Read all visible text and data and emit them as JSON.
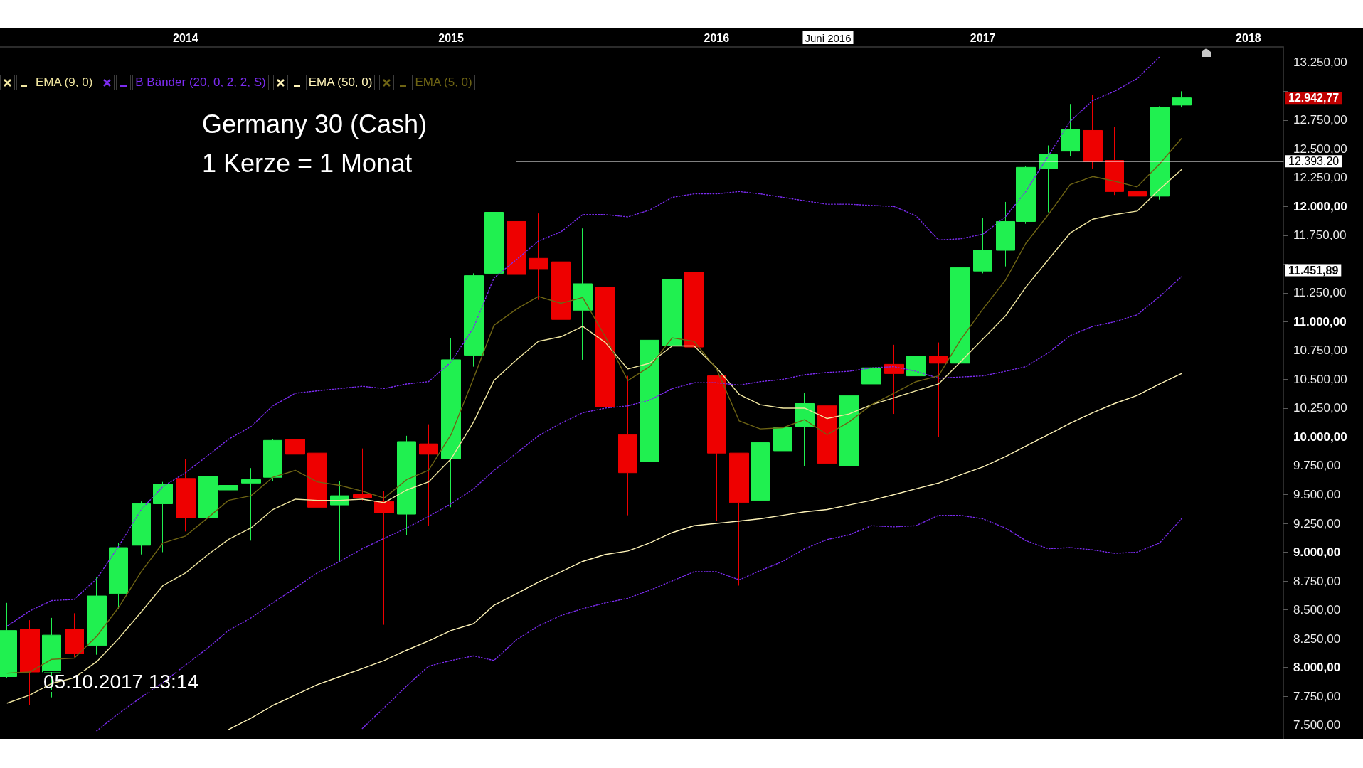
{
  "chart_data": {
    "type": "candlestick",
    "title": "Germany 30 (Cash)",
    "subtitle": "1 Kerze = 1 Monat",
    "x": [
      "2013-05",
      "2013-06",
      "2013-07",
      "2013-08",
      "2013-09",
      "2013-10",
      "2013-11",
      "2013-12",
      "2014-01",
      "2014-02",
      "2014-03",
      "2014-04",
      "2014-05",
      "2014-06",
      "2014-07",
      "2014-08",
      "2014-09",
      "2014-10",
      "2014-11",
      "2014-12",
      "2015-01",
      "2015-02",
      "2015-03",
      "2015-04",
      "2015-05",
      "2015-06",
      "2015-07",
      "2015-08",
      "2015-09",
      "2015-10",
      "2015-11",
      "2015-12",
      "2016-01",
      "2016-02",
      "2016-03",
      "2016-04",
      "2016-05",
      "2016-06",
      "2016-07",
      "2016-08",
      "2016-09",
      "2016-10",
      "2016-11",
      "2016-12",
      "2017-01",
      "2017-02",
      "2017-03",
      "2017-04",
      "2017-05",
      "2017-06",
      "2017-07",
      "2017-08",
      "2017-09",
      "2017-10"
    ],
    "xlim": [
      "2013-04-21",
      "2018-02-18"
    ],
    "xticks": [
      "2014",
      "2015",
      "2016",
      "2017",
      "2018"
    ],
    "ylim": [
      7380,
      13385
    ],
    "yticks": [
      {
        "value": 7500,
        "label": "7.500,00"
      },
      {
        "value": 7750,
        "label": "7.750,00"
      },
      {
        "value": 8000,
        "label": "8.000,00"
      },
      {
        "value": 8250,
        "label": "8.250,00"
      },
      {
        "value": 8500,
        "label": "8.500,00"
      },
      {
        "value": 8750,
        "label": "8.750,00"
      },
      {
        "value": 9000,
        "label": "9.000,00"
      },
      {
        "value": 9250,
        "label": "9.250,00"
      },
      {
        "value": 9500,
        "label": "9.500,00"
      },
      {
        "value": 9750,
        "label": "9.750,00"
      },
      {
        "value": 10000,
        "label": "10.000,00"
      },
      {
        "value": 10250,
        "label": "10.250,00"
      },
      {
        "value": 10500,
        "label": "10.500,00"
      },
      {
        "value": 10750,
        "label": "10.750,00"
      },
      {
        "value": 11000,
        "label": "11.000,00"
      },
      {
        "value": 11250,
        "label": "11.250,00"
      },
      {
        "value": 11500,
        "label": null
      },
      {
        "value": 11750,
        "label": "11.750,00"
      },
      {
        "value": 12000,
        "label": "12.000,00"
      },
      {
        "value": 12250,
        "label": "12.250,00"
      },
      {
        "value": 12500,
        "label": "12.500,00"
      },
      {
        "value": 12750,
        "label": "12.750,00"
      },
      {
        "value": 13000,
        "label": null
      },
      {
        "value": 13250,
        "label": "13.250,00"
      }
    ],
    "legend": "top left",
    "series": [
      {
        "ohlc": [
          [
            7920,
            8560,
            7910,
            8320
          ],
          [
            8330,
            8410,
            7670,
            7960
          ],
          [
            7960,
            8430,
            7740,
            8280
          ],
          [
            8330,
            8470,
            8090,
            8120
          ],
          [
            8190,
            8780,
            8110,
            8620
          ],
          [
            8640,
            9080,
            8510,
            9040
          ],
          [
            9060,
            9440,
            8980,
            9420
          ],
          [
            9420,
            9610,
            9000,
            9590
          ],
          [
            9640,
            9810,
            9180,
            9300
          ],
          [
            9300,
            9740,
            9080,
            9660
          ],
          [
            9540,
            9650,
            8930,
            9580
          ],
          [
            9600,
            9730,
            9100,
            9630
          ],
          [
            9650,
            9980,
            9620,
            9970
          ],
          [
            9980,
            10060,
            9770,
            9850
          ],
          [
            9860,
            10050,
            9380,
            9390
          ],
          [
            9410,
            9620,
            8920,
            9490
          ],
          [
            9500,
            9900,
            9450,
            9470
          ],
          [
            9440,
            9530,
            8370,
            9340
          ],
          [
            9330,
            10010,
            9150,
            9960
          ],
          [
            9940,
            10110,
            9230,
            9850
          ],
          [
            9810,
            10860,
            9390,
            10670
          ],
          [
            10710,
            11420,
            10610,
            11400
          ],
          [
            11420,
            12240,
            11200,
            11950
          ],
          [
            11870,
            12390,
            11350,
            11410
          ],
          [
            11550,
            11940,
            11190,
            11460
          ],
          [
            11520,
            11650,
            10820,
            11020
          ],
          [
            11100,
            11810,
            10670,
            11330
          ],
          [
            11300,
            11680,
            9340,
            10260
          ],
          [
            10020,
            10530,
            9320,
            9690
          ],
          [
            9790,
            10940,
            9410,
            10840
          ],
          [
            10790,
            11440,
            10500,
            11370
          ],
          [
            11430,
            11440,
            10140,
            10780
          ],
          [
            10530,
            10530,
            9270,
            9860
          ],
          [
            9860,
            9860,
            8710,
            9430
          ],
          [
            9450,
            10130,
            9410,
            9950
          ],
          [
            9880,
            10500,
            9450,
            10080
          ],
          [
            10090,
            10380,
            9750,
            10290
          ],
          [
            10270,
            10360,
            9180,
            9770
          ],
          [
            9750,
            10400,
            9310,
            10360
          ],
          [
            10460,
            10820,
            10110,
            10600
          ],
          [
            10630,
            10800,
            10200,
            10550
          ],
          [
            10530,
            10840,
            10360,
            10700
          ],
          [
            10700,
            10820,
            10000,
            10640
          ],
          [
            10640,
            11510,
            10420,
            11470
          ],
          [
            11440,
            11900,
            11420,
            11620
          ],
          [
            11620,
            12040,
            11480,
            11870
          ],
          [
            11870,
            12350,
            11850,
            12340
          ],
          [
            12330,
            12530,
            11950,
            12450
          ],
          [
            12480,
            12890,
            12440,
            12670
          ],
          [
            12660,
            12970,
            12330,
            12390
          ],
          [
            12400,
            12690,
            12100,
            12130
          ],
          [
            12130,
            12350,
            11890,
            12090
          ],
          [
            12090,
            12870,
            12060,
            12860
          ],
          [
            12880,
            13000,
            12860,
            12942.77
          ]
        ],
        "colors": [
          "#20f050",
          "#ee0000",
          "#20f050",
          "#ee0000",
          "#20f050",
          "#20f050",
          "#20f050",
          "#20f050",
          "#ee0000",
          "#20f050",
          "#20f050",
          "#20f050",
          "#20f050",
          "#ee0000",
          "#ee0000",
          "#20f050",
          "#ee0000",
          "#ee0000",
          "#20f050",
          "#ee0000",
          "#20f050",
          "#20f050",
          "#20f050",
          "#ee0000",
          "#ee0000",
          "#ee0000",
          "#20f050",
          "#ee0000",
          "#ee0000",
          "#20f050",
          "#20f050",
          "#ee0000",
          "#ee0000",
          "#ee0000",
          "#20f050",
          "#20f050",
          "#20f050",
          "#ee0000",
          "#20f050",
          "#20f050",
          "#ee0000",
          "#20f050",
          "#ee0000",
          "#20f050",
          "#20f050",
          "#20f050",
          "#20f050",
          "#20f050",
          "#20f050",
          "#ee0000",
          "#ee0000",
          "#ee0000",
          "#20f050",
          "#20f050"
        ],
        "value_labels": [
          null,
          null,
          null,
          null,
          null,
          null,
          null,
          null,
          null,
          null,
          null,
          null,
          null,
          null,
          null,
          null,
          null,
          null,
          null,
          null,
          null,
          null,
          null,
          null,
          null,
          null,
          null,
          null,
          null,
          null,
          null,
          null,
          null,
          null,
          null,
          null,
          null,
          null,
          null,
          null,
          null,
          null,
          null,
          null,
          null,
          null,
          null,
          null,
          null,
          null,
          null,
          null,
          null,
          "12.942,77"
        ]
      },
      {
        "type": "line",
        "name": "EMA (9, 0)",
        "color": "#f0e6a0",
        "values": [
          7690,
          7760,
          7860,
          7910,
          8050,
          8250,
          8480,
          8710,
          8820,
          8980,
          9110,
          9210,
          9370,
          9460,
          9450,
          9450,
          9460,
          9430,
          9540,
          9610,
          9810,
          10130,
          10490,
          10670,
          10830,
          10870,
          10960,
          10820,
          10590,
          10640,
          10790,
          10790,
          10600,
          10370,
          10280,
          10250,
          10250,
          10160,
          10200,
          10280,
          10340,
          10400,
          10460,
          10650,
          10850,
          11050,
          11300,
          11540,
          11770,
          11890,
          11930,
          11960,
          12150,
          12320
        ]
      },
      {
        "type": "line",
        "name": "B Bänder (20, 0, 2, 2, S)",
        "color": "#7b2cf0",
        "line_style": "dotted",
        "values": [
          8360,
          8490,
          8580,
          8590,
          8770,
          9050,
          9370,
          9570,
          9690,
          9840,
          9980,
          10090,
          10270,
          10380,
          10400,
          10420,
          10440,
          10420,
          10460,
          10480,
          10650,
          10950,
          11380,
          11540,
          11700,
          11780,
          11930,
          11930,
          11910,
          11970,
          12080,
          12110,
          12110,
          12130,
          12110,
          12080,
          12050,
          12020,
          12020,
          12010,
          12000,
          11920,
          11710,
          11720,
          11760,
          11910,
          12130,
          12440,
          12740,
          12920,
          13000,
          13110,
          13300,
          null
        ]
      },
      {
        "type": "line",
        "color": "#7b2cf0",
        "line_style": "dotted",
        "values": [
          null,
          null,
          null,
          null,
          7450,
          7600,
          7740,
          7870,
          8020,
          8170,
          8320,
          8430,
          8560,
          8690,
          8820,
          8920,
          9030,
          9120,
          9210,
          9310,
          9420,
          9550,
          9710,
          9860,
          10010,
          10120,
          10210,
          10250,
          10270,
          10320,
          10420,
          10470,
          10470,
          10450,
          10480,
          10500,
          10540,
          10560,
          10570,
          10600,
          10610,
          10570,
          10510,
          10520,
          10530,
          10570,
          10610,
          10730,
          10880,
          10960,
          11000,
          11060,
          11220,
          11390
        ]
      },
      {
        "type": "line",
        "color": "#7b2cf0",
        "line_style": "dotted",
        "values": [
          null,
          null,
          null,
          null,
          null,
          null,
          null,
          null,
          null,
          null,
          null,
          null,
          null,
          null,
          null,
          null,
          7470,
          7650,
          7840,
          8010,
          8060,
          8100,
          8060,
          8240,
          8360,
          8450,
          8510,
          8560,
          8600,
          8670,
          8750,
          8830,
          8830,
          8760,
          8840,
          8920,
          9030,
          9110,
          9150,
          9230,
          9220,
          9230,
          9320,
          9320,
          9290,
          9210,
          9100,
          9030,
          9040,
          9020,
          8990,
          9000,
          9080,
          9290
        ]
      },
      {
        "type": "line",
        "name": "EMA (50, 0)",
        "color": "#fff4b8",
        "values": [
          null,
          null,
          null,
          null,
          null,
          null,
          null,
          null,
          null,
          null,
          7460,
          7560,
          7670,
          7760,
          7850,
          7920,
          7990,
          8060,
          8150,
          8230,
          8320,
          8380,
          8540,
          8640,
          8740,
          8830,
          8920,
          8980,
          9010,
          9080,
          9170,
          9230,
          9250,
          9270,
          9290,
          9320,
          9350,
          9370,
          9410,
          9450,
          9500,
          9550,
          9600,
          9670,
          9740,
          9830,
          9920,
          10020,
          10120,
          10210,
          10290,
          10360,
          10460,
          10550
        ]
      },
      {
        "type": "line",
        "name": "EMA (5, 0)",
        "color": "#6e6414",
        "values": [
          7950,
          7960,
          8070,
          8080,
          8270,
          8520,
          8830,
          9080,
          9140,
          9300,
          9450,
          9490,
          9650,
          9710,
          9610,
          9580,
          9530,
          9470,
          9630,
          9710,
          10020,
          10510,
          10970,
          11110,
          11220,
          11160,
          11210,
          10870,
          10490,
          10610,
          10860,
          10830,
          10590,
          10140,
          10070,
          10080,
          10150,
          10020,
          10130,
          10280,
          10380,
          10480,
          10530,
          10840,
          11110,
          11360,
          11680,
          11930,
          12190,
          12260,
          12220,
          12170,
          12370,
          12590
        ]
      },
      {
        "type": "line",
        "color": "#ffffff",
        "x": [
          "2015-04",
          "2018-02-18"
        ],
        "values": [
          12393.2,
          12393.2
        ],
        "value_labels": [
          null,
          "12.393,20"
        ]
      }
    ],
    "annotations": [
      "05.10.2017 13:14",
      "Juni 2016",
      "11.451,89"
    ]
  }
}
